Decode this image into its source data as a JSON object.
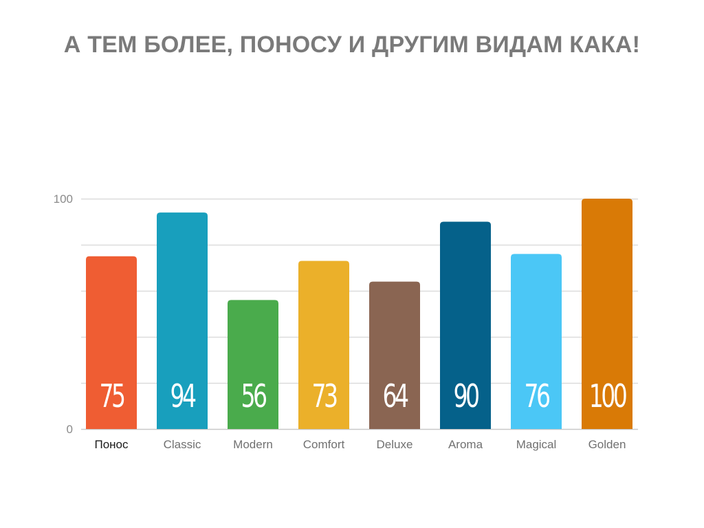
{
  "slide": {
    "title": "А ТЕМ БОЛЕЕ, ПОНОСУ И ДРУГИМ ВИДАМ КАКА!"
  },
  "chart_data": {
    "type": "bar",
    "categories": [
      "Понос",
      "Classic",
      "Modern",
      "Comfort",
      "Deluxe",
      "Aroma",
      "Magical",
      "Golden"
    ],
    "values": [
      75,
      94,
      56,
      73,
      64,
      90,
      76,
      100
    ],
    "data_labels": [
      "75",
      "94",
      "56",
      "73",
      "64",
      "90",
      "76",
      "100"
    ],
    "colors": [
      "#ef5d33",
      "#189fbd",
      "#4aab4c",
      "#ebb02a",
      "#8a6552",
      "#05618a",
      "#4bc7f6",
      "#d97a06"
    ],
    "ylim": [
      0,
      100
    ],
    "y_tick_labels": [
      "0",
      "100"
    ],
    "gridlines": true,
    "gridline_count": 5,
    "xlabel": "",
    "ylabel": "",
    "legend": "none"
  }
}
